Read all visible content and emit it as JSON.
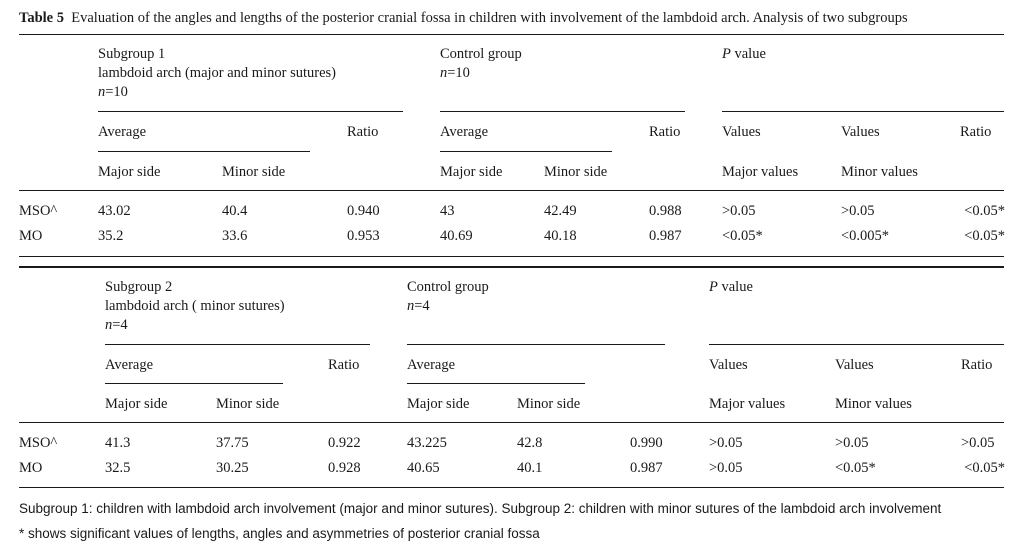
{
  "caption": {
    "label": "Table 5",
    "text": "Evaluation of the angles and lengths of the posterior cranial fossa in children with involvement of the lambdoid arch. Analysis of two subgroups"
  },
  "block1": {
    "group_a": {
      "line1": "Subgroup 1",
      "line2": "lambdoid arch (major and minor sutures)",
      "n_label": "n",
      "n_value": "=10"
    },
    "group_b": {
      "line1": "Control group",
      "n_label": "n",
      "n_value": "=10"
    },
    "pvalue": {
      "p": "P",
      "rest": " value"
    },
    "sub": {
      "average_a": "Average",
      "ratio_a": "Ratio",
      "average_b": "Average",
      "ratio_b": "Ratio",
      "values_1": "Values",
      "values_2": "Values",
      "ratio_p": "Ratio"
    },
    "sub2": {
      "major_a": "Major side",
      "minor_a": "Minor side",
      "major_b": "Major side",
      "minor_b": "Minor side",
      "major_p": "Major values",
      "minor_p": "Minor values"
    },
    "rows": [
      {
        "label": "MSO^",
        "cells": [
          "43.02",
          "40.4",
          "0.940",
          "43",
          "42.49",
          "0.988",
          ">0.05",
          ">0.05",
          "<0.05*"
        ]
      },
      {
        "label": "MO",
        "cells": [
          "35.2",
          "33.6",
          "0.953",
          "40.69",
          "40.18",
          "0.987",
          "<0.05*",
          "<0.005*",
          "<0.05*"
        ]
      }
    ]
  },
  "block2": {
    "group_a": {
      "line1": "Subgroup 2",
      "line2": "lambdoid arch ( minor sutures)",
      "n_label": "n",
      "n_value": "=4"
    },
    "group_b": {
      "line1": "Control group",
      "n_label": "n",
      "n_value": "=4"
    },
    "pvalue": {
      "p": "P",
      "rest": " value"
    },
    "sub": {
      "average_a": "Average",
      "ratio_a": "Ratio",
      "average_b": "Average",
      "values_1": "Values",
      "values_2": "Values",
      "ratio_p": "Ratio"
    },
    "sub2": {
      "major_a": "Major side",
      "minor_a": "Minor side",
      "major_b": "Major side",
      "minor_b": "Minor side",
      "major_p": "Major values",
      "minor_p": "Minor values"
    },
    "rows": [
      {
        "label": "MSO^",
        "cells": [
          "41.3",
          "37.75",
          "0.922",
          "43.225",
          "42.8",
          "0.990",
          ">0.05",
          ">0.05",
          ">0.05"
        ]
      },
      {
        "label": "MO",
        "cells": [
          "32.5",
          "30.25",
          "0.928",
          "40.65",
          "40.1",
          "0.987",
          ">0.05",
          "<0.05*",
          "<0.05*"
        ]
      }
    ]
  },
  "footnotes": {
    "line1": "Subgroup 1: children with lambdoid arch involvement (major and minor sutures). Subgroup 2: children with minor sutures of the lambdoid arch involvement",
    "line2": "* shows significant values of lengths, angles and asymmetries of posterior cranial fossa"
  }
}
